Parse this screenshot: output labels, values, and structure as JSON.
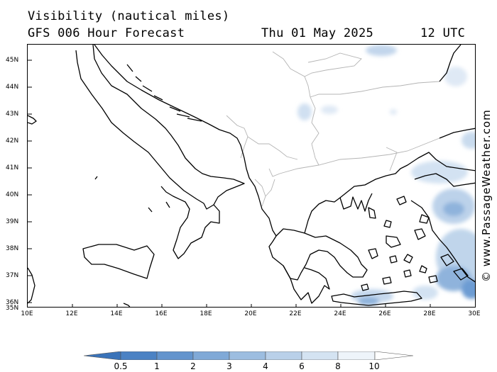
{
  "header": {
    "title": "Visibility (nautical miles)",
    "model": "GFS 006 Hour Forecast",
    "date": "Thu 01 May 2025",
    "time": "12 UTC"
  },
  "map": {
    "lat_labels": [
      "45N",
      "44N",
      "43N",
      "42N",
      "41N",
      "40N",
      "39N",
      "38N",
      "37N",
      "36N",
      "35N"
    ],
    "lon_labels": [
      "10E",
      "12E",
      "14E",
      "16E",
      "18E",
      "20E",
      "22E",
      "24E",
      "26E",
      "28E",
      "30E"
    ],
    "lat_range": [
      35,
      45.7
    ],
    "lon_range": [
      10,
      30
    ],
    "coastline_color": "#000000",
    "border_color": "#b4b4b4",
    "low_visibility_color": "#6d9cd3"
  },
  "credit": "© www.PassageWeather.com",
  "colorbar": {
    "labels": [
      "0.5",
      "1",
      "2",
      "3",
      "4",
      "6",
      "8",
      "10"
    ],
    "colors": [
      "#3a73b9",
      "#4b82c4",
      "#6394cd",
      "#80a9d7",
      "#9cbde0",
      "#b9d0e9",
      "#d4e3f2",
      "#eef4fa"
    ]
  }
}
